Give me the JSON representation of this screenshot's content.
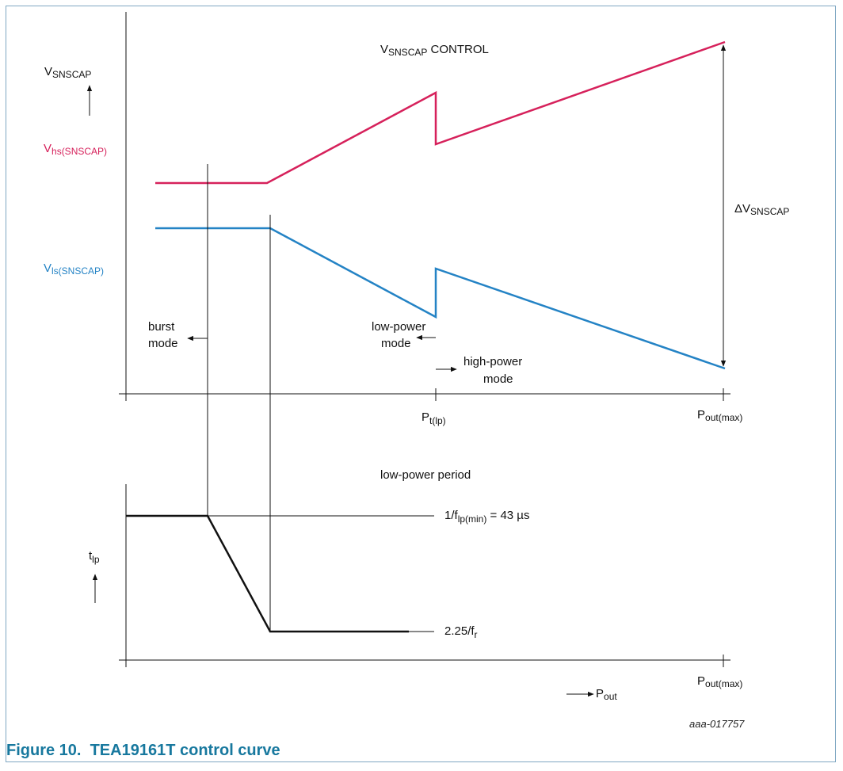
{
  "figure": {
    "caption": "Figure 10.  TEA19161T control curve",
    "code": "aaa-017757"
  },
  "colors": {
    "hs_curve": "#d6215b",
    "ls_curve": "#2483c5",
    "caption": "#17789e",
    "frame": "#7fa7c2",
    "lines": "#111111"
  },
  "top_panel": {
    "title": {
      "main": "V",
      "sub": "SNSCAP",
      "tail": " CONTROL"
    },
    "y_label": {
      "main": "V",
      "sub": "SNSCAP"
    },
    "hs_label": {
      "main": "V",
      "sub": "hs(SNSCAP)"
    },
    "ls_label": {
      "main": "V",
      "sub": "ls(SNSCAP)"
    },
    "delta_label": {
      "main": "ΔV",
      "sub": "SNSCAP"
    },
    "x_tick_1": {
      "main": "P",
      "sub": "t(lp)"
    },
    "x_tick_2": {
      "main": "P",
      "sub": "out(max)"
    },
    "annotations": {
      "burst_l1": "burst",
      "burst_l2": "mode",
      "lowpower_l1": "low-power",
      "lowpower_l2": "mode",
      "highpower_l1": "high-power",
      "highpower_l2": "mode"
    }
  },
  "bottom_panel": {
    "title": "low-power period",
    "y_label": {
      "main": "t",
      "sub": "lp"
    },
    "level_high": {
      "pre": "1/f",
      "sub": "lp(min)",
      "post": " = 43 µs"
    },
    "level_low": {
      "pre": "2.25/f",
      "sub": "r"
    },
    "x_tick": {
      "main": "P",
      "sub": "out(max)"
    },
    "x_axis_label": {
      "main": "P",
      "sub": "out"
    }
  }
}
